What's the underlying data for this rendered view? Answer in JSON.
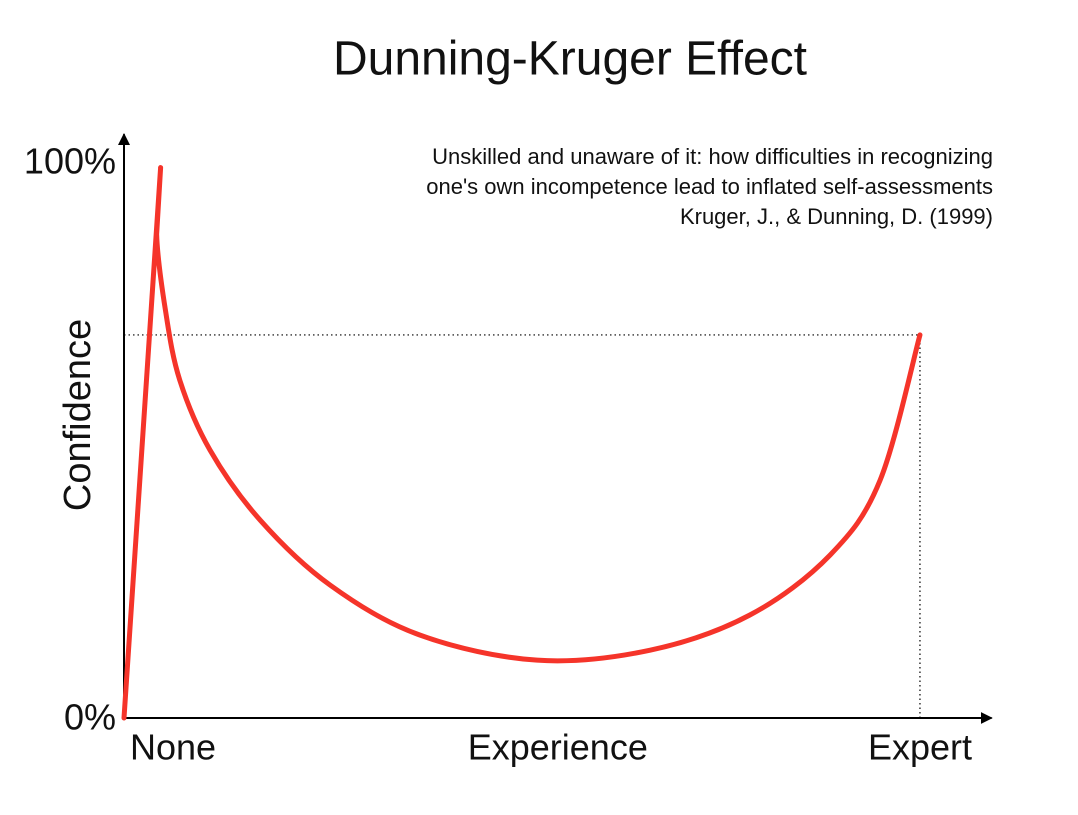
{
  "chart_data": {
    "type": "line",
    "title": "Dunning-Kruger Effect",
    "annotation": [
      "Unskilled and unaware of it: how difficulties in recognizing",
      "one's own incompetence lead to inflated self-assessments",
      "Kruger, J., & Dunning, D. (1999)"
    ],
    "ylabel": "Confidence",
    "x": [
      0,
      4.6,
      4.1,
      5.2,
      7.0,
      10.8,
      17.1,
      25.9,
      37.2,
      51.9,
      66.1,
      78.6,
      88.7,
      95.0,
      100
    ],
    "values": [
      0,
      99,
      87,
      73.4,
      60.8,
      48.2,
      35.6,
      23.9,
      14.9,
      10.4,
      12.2,
      18.5,
      29.3,
      42.8,
      68.9
    ],
    "color": "#f5342a",
    "xlim": [
      0,
      109
    ],
    "ylim": [
      0,
      105
    ],
    "xticks": [
      {
        "value": 0,
        "label": "None"
      },
      {
        "value": 54.5,
        "label": "Experience"
      },
      {
        "value": 100,
        "label": "Expert"
      }
    ],
    "yticks": [
      {
        "value": 0,
        "label": "0%"
      },
      {
        "value": 100,
        "label": "100%"
      }
    ]
  }
}
